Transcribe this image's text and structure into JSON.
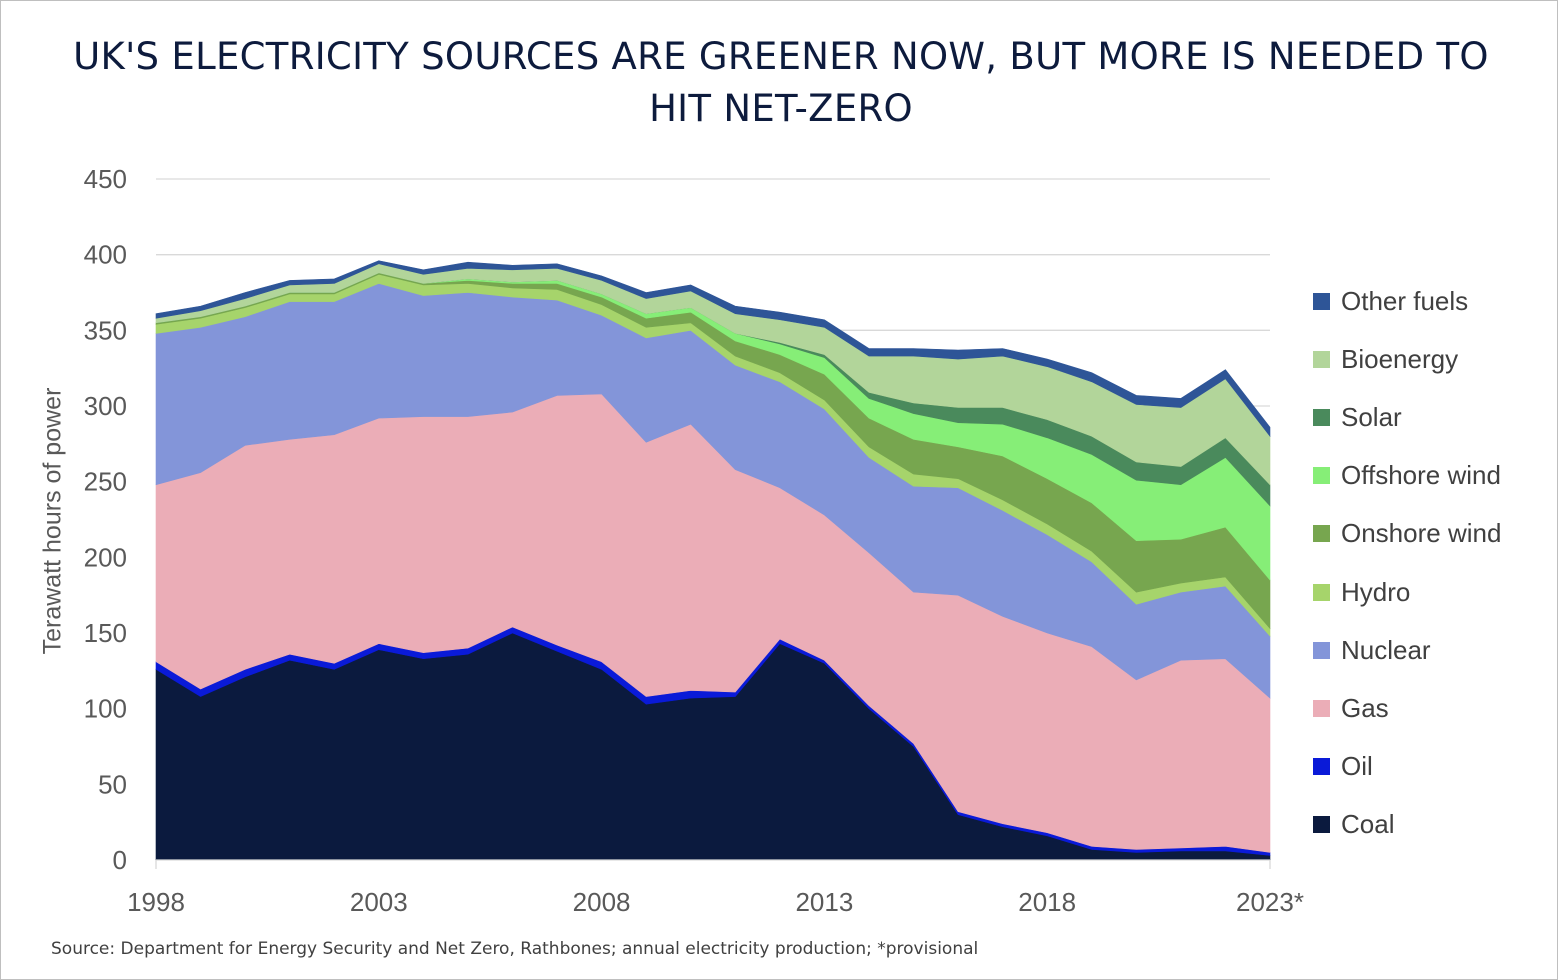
{
  "title": "UK'S ELECTRICITY SOURCES ARE GREENER NOW, BUT MORE IS NEEDED TO HIT NET-ZERO",
  "source_note": "Source: Department for Energy Security and Net Zero, Rathbones; annual electricity production; *provisional",
  "chart_data": {
    "type": "area",
    "stacked": true,
    "title": "UK'S ELECTRICITY SOURCES ARE GREENER NOW, BUT MORE IS NEEDED TO HIT NET-ZERO",
    "xlabel": "",
    "ylabel": "Terawatt hours of power",
    "ylim": [
      0,
      450
    ],
    "yticks": [
      "0",
      "50",
      "100",
      "150",
      "200",
      "250",
      "300",
      "350",
      "400",
      "450"
    ],
    "xtick_labels": [
      "1998",
      "2003",
      "2008",
      "2013",
      "2018",
      "2023*"
    ],
    "grid": "horizontal",
    "legend_position": "right",
    "x": [
      1998,
      1999,
      2000,
      2001,
      2002,
      2003,
      2004,
      2005,
      2006,
      2007,
      2008,
      2009,
      2010,
      2011,
      2012,
      2013,
      2014,
      2015,
      2016,
      2017,
      2018,
      2019,
      2020,
      2021,
      2022,
      2023
    ],
    "series": [
      {
        "name": "Coal",
        "color": "#0b1a3e",
        "values": [
          126,
          108,
          121,
          132,
          126,
          139,
          133,
          136,
          150,
          138,
          126,
          103,
          107,
          108,
          143,
          130,
          100,
          75,
          30,
          22,
          16,
          7,
          5,
          6,
          6,
          3
        ]
      },
      {
        "name": "Oil",
        "color": "#0a1ad8",
        "values": [
          5,
          5,
          5,
          4,
          4,
          4,
          4,
          4,
          4,
          4,
          5,
          5,
          5,
          3,
          3,
          2,
          2,
          2,
          2,
          2,
          2,
          2,
          2,
          2,
          3,
          2
        ]
      },
      {
        "name": "Gas",
        "color": "#ebadb7",
        "values": [
          117,
          143,
          148,
          142,
          151,
          149,
          156,
          153,
          142,
          165,
          177,
          168,
          176,
          147,
          100,
          96,
          101,
          100,
          143,
          137,
          132,
          132,
          112,
          124,
          124,
          102
        ]
      },
      {
        "name": "Nuclear",
        "color": "#8395d9",
        "values": [
          100,
          96,
          85,
          91,
          88,
          89,
          80,
          82,
          76,
          63,
          52,
          69,
          62,
          69,
          70,
          70,
          63,
          70,
          71,
          70,
          65,
          56,
          50,
          45,
          48,
          41
        ]
      },
      {
        "name": "Hydro",
        "color": "#a6d46b",
        "values": [
          6,
          6,
          6,
          5,
          5,
          6,
          7,
          6,
          6,
          7,
          7,
          7,
          5,
          6,
          6,
          6,
          7,
          8,
          6,
          7,
          7,
          7,
          8,
          6,
          6,
          5
        ]
      },
      {
        "name": "Onshore wind",
        "color": "#77a64f",
        "values": [
          1,
          1,
          1,
          1,
          1,
          1,
          1,
          2,
          3,
          4,
          5,
          6,
          7,
          10,
          12,
          17,
          19,
          23,
          21,
          29,
          30,
          32,
          34,
          29,
          33,
          32
        ]
      },
      {
        "name": "Offshore wind",
        "color": "#86ee77",
        "values": [
          0,
          0,
          0,
          0,
          0,
          0,
          0,
          1,
          1,
          2,
          2,
          3,
          3,
          5,
          7,
          11,
          13,
          17,
          16,
          21,
          27,
          32,
          40,
          36,
          46,
          49
        ]
      },
      {
        "name": "Solar",
        "color": "#4a8a5c",
        "values": [
          0,
          0,
          0,
          0,
          0,
          0,
          0,
          0,
          0,
          0,
          0,
          0,
          0,
          0,
          1,
          2,
          4,
          7,
          10,
          11,
          12,
          12,
          12,
          12,
          13,
          14
        ]
      },
      {
        "name": "Bioenergy",
        "color": "#b2d59a",
        "values": [
          3,
          4,
          5,
          5,
          6,
          6,
          6,
          7,
          8,
          8,
          9,
          10,
          11,
          13,
          15,
          18,
          24,
          31,
          32,
          34,
          35,
          36,
          38,
          39,
          39,
          32
        ]
      },
      {
        "name": "Other fuels",
        "color": "#2e5597",
        "values": [
          3,
          3,
          4,
          3,
          3,
          2,
          3,
          4,
          3,
          3,
          3,
          4,
          4,
          5,
          5,
          5,
          5,
          5,
          6,
          5,
          5,
          6,
          6,
          6,
          6,
          6
        ]
      }
    ]
  }
}
